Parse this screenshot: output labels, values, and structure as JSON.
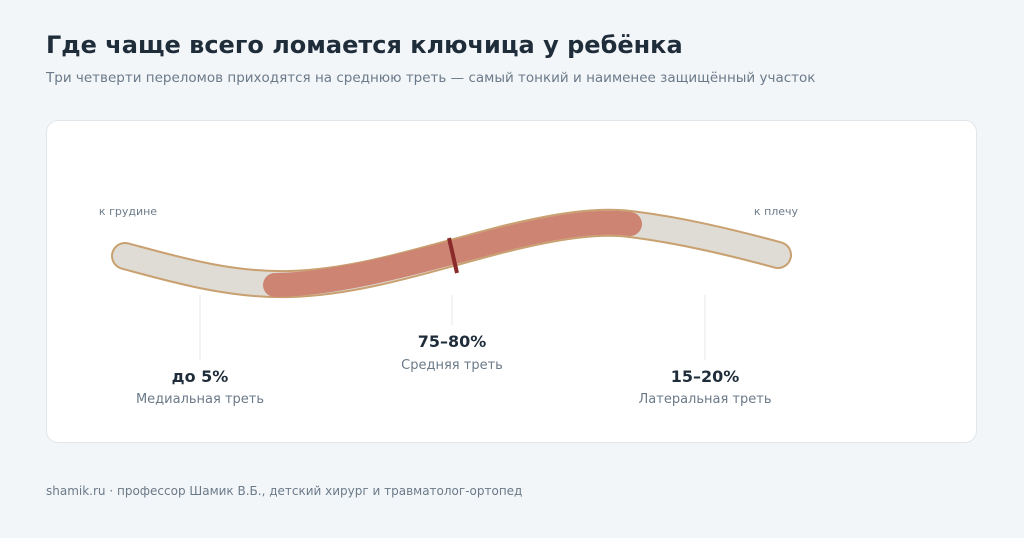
{
  "header": {
    "title": "Где чаще всего ломается ключица у ребёнка",
    "subtitle": "Три четверти переломов приходятся на среднюю треть — самый тонкий и наименее защищённый участок"
  },
  "diagram": {
    "left_end": "к грудине",
    "right_end": "к плечу",
    "segments": [
      {
        "value": "до 5%",
        "label": "Медиальная треть"
      },
      {
        "value": "75–80%",
        "label": "Средняя треть"
      },
      {
        "value": "15–20%",
        "label": "Латеральная треть"
      }
    ]
  },
  "footer": "shamik.ru · профессор Шамик В.Б., детский хирург и травматолог-ортопед"
}
